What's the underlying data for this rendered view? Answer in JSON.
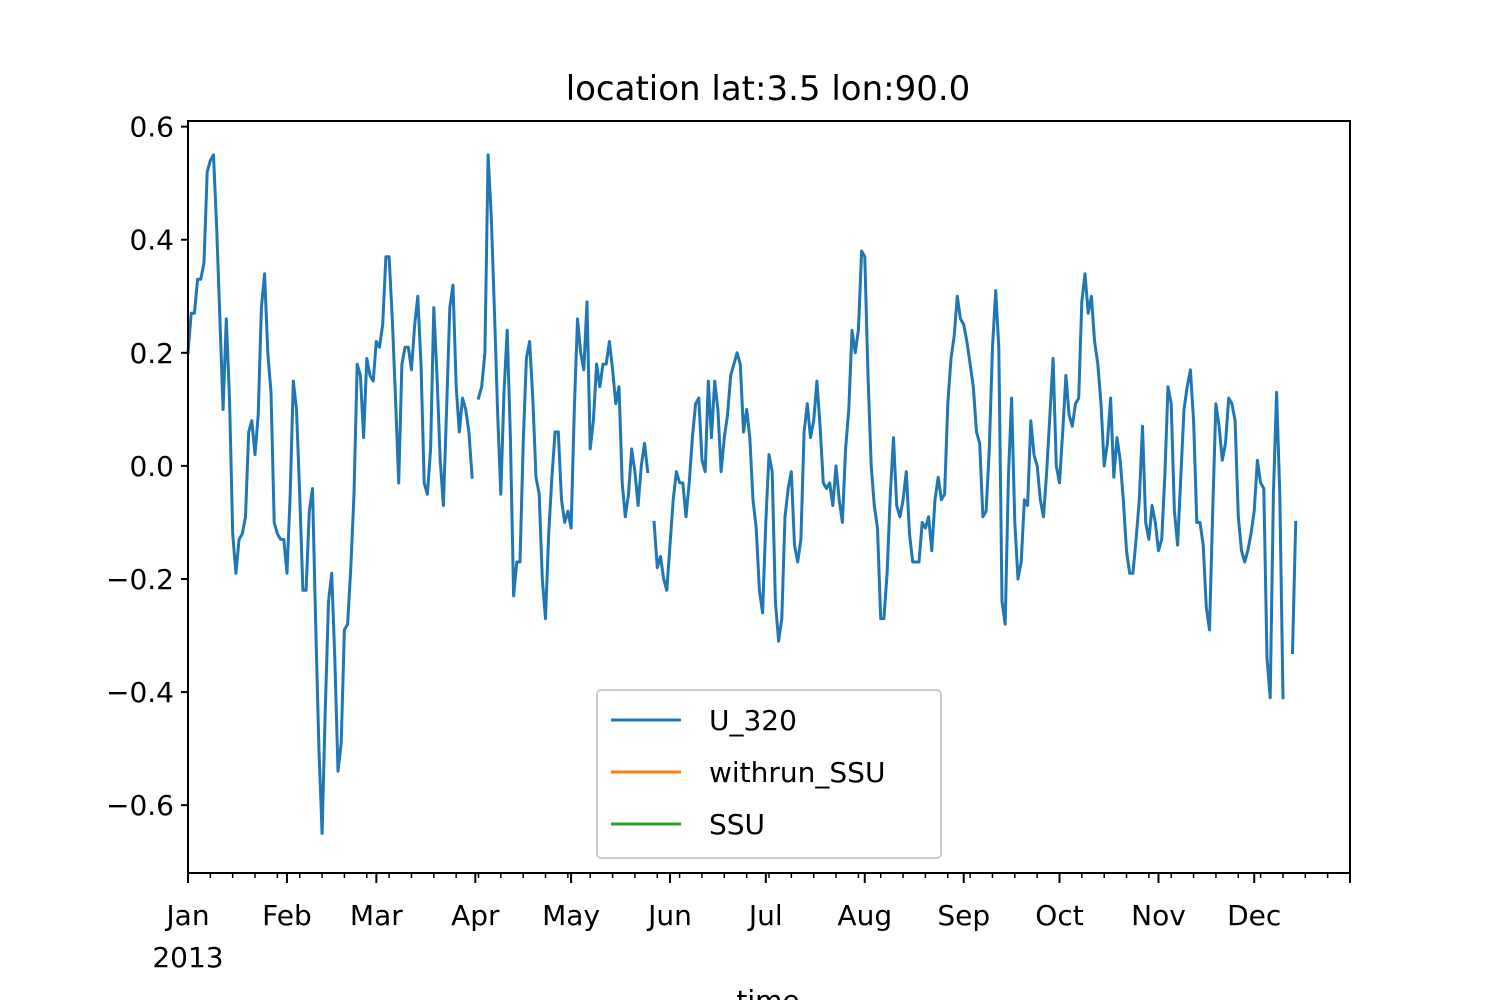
{
  "chart_data": {
    "type": "line",
    "title": "location lat:3.5 lon:90.0",
    "xlabel": "time",
    "ylabel": "",
    "x_start": "2013-01-01",
    "x_step": "1 day",
    "xlim": [
      "2013-01-01",
      "2013-12-31"
    ],
    "ylim": [
      -0.72,
      0.61
    ],
    "yticks": [
      0.6,
      0.4,
      0.2,
      0.0,
      -0.2,
      -0.4,
      -0.6
    ],
    "ytick_labels": [
      "0.6",
      "0.4",
      "0.2",
      "0.0",
      "−0.2",
      "−0.4",
      "−0.6"
    ],
    "month_ticks": [
      "2013-01-01",
      "2013-02-01",
      "2013-03-01",
      "2013-04-01",
      "2013-05-01",
      "2013-06-01",
      "2013-07-01",
      "2013-08-01",
      "2013-09-01",
      "2013-10-01",
      "2013-11-01",
      "2013-12-01"
    ],
    "month_labels": [
      "Jan",
      "Feb",
      "Mar",
      "Apr",
      "May",
      "Jun",
      "Jul",
      "Aug",
      "Sep",
      "Oct",
      "Nov",
      "Dec"
    ],
    "year_label": "2013",
    "grid": false,
    "legend_position": "lower center",
    "series": [
      {
        "name": "U_320",
        "color": "#1f77b4",
        "values": [
          0.2,
          0.27,
          0.27,
          0.33,
          0.33,
          0.36,
          0.52,
          0.54,
          0.55,
          0.42,
          0.26,
          0.1,
          0.26,
          0.12,
          -0.12,
          -0.19,
          -0.13,
          -0.12,
          -0.09,
          0.06,
          0.08,
          0.02,
          0.09,
          0.28,
          0.34,
          0.2,
          0.13,
          -0.1,
          -0.12,
          -0.13,
          -0.13,
          -0.19,
          -0.05,
          0.15,
          0.1,
          -0.05,
          -0.22,
          -0.22,
          -0.08,
          -0.04,
          -0.28,
          -0.5,
          -0.65,
          -0.43,
          -0.24,
          -0.19,
          -0.34,
          -0.54,
          -0.49,
          -0.29,
          -0.28,
          -0.18,
          -0.05,
          0.18,
          0.16,
          0.05,
          0.19,
          0.16,
          0.15,
          0.22,
          0.21,
          0.25,
          0.37,
          0.37,
          0.26,
          0.12,
          -0.03,
          0.18,
          0.21,
          0.21,
          0.17,
          0.25,
          0.3,
          0.18,
          -0.03,
          -0.05,
          0.03,
          0.28,
          0.16,
          0.01,
          -0.07,
          0.1,
          0.28,
          0.32,
          0.14,
          0.06,
          0.12,
          0.1,
          0.06,
          -0.02,
          null,
          0.12,
          0.14,
          0.2,
          0.55,
          0.44,
          0.27,
          0.09,
          -0.05,
          0.13,
          0.24,
          0.05,
          -0.23,
          -0.17,
          -0.17,
          0.04,
          0.19,
          0.22,
          0.12,
          -0.02,
          -0.05,
          -0.2,
          -0.27,
          -0.12,
          -0.02,
          0.06,
          0.06,
          -0.06,
          -0.1,
          -0.08,
          -0.11,
          0.1,
          0.26,
          0.2,
          0.17,
          0.29,
          0.03,
          0.08,
          0.18,
          0.14,
          0.18,
          0.18,
          0.22,
          0.17,
          0.11,
          0.14,
          -0.03,
          -0.09,
          -0.05,
          0.03,
          -0.01,
          -0.07,
          0.0,
          0.04,
          -0.01,
          null,
          -0.1,
          -0.18,
          -0.16,
          -0.2,
          -0.22,
          -0.14,
          -0.06,
          -0.01,
          -0.03,
          -0.03,
          -0.09,
          -0.03,
          0.05,
          0.11,
          0.12,
          0.01,
          -0.01,
          0.15,
          0.05,
          0.15,
          0.1,
          -0.01,
          0.05,
          0.09,
          0.16,
          0.18,
          0.2,
          0.18,
          0.06,
          0.1,
          0.05,
          -0.06,
          -0.11,
          -0.22,
          -0.26,
          -0.1,
          0.02,
          -0.01,
          -0.24,
          -0.31,
          -0.27,
          -0.09,
          -0.04,
          -0.01,
          -0.14,
          -0.17,
          -0.13,
          0.06,
          0.11,
          0.05,
          0.08,
          0.15,
          0.07,
          -0.03,
          -0.04,
          -0.03,
          -0.07,
          0.0,
          -0.06,
          -0.1,
          0.03,
          0.1,
          0.24,
          0.2,
          0.24,
          0.38,
          0.37,
          0.16,
          0.0,
          -0.07,
          -0.11,
          -0.27,
          -0.27,
          -0.19,
          -0.05,
          0.05,
          -0.07,
          -0.09,
          -0.06,
          -0.01,
          -0.12,
          -0.17,
          -0.17,
          -0.17,
          -0.1,
          -0.11,
          -0.09,
          -0.15,
          -0.06,
          -0.02,
          -0.06,
          -0.05,
          0.11,
          0.19,
          0.23,
          0.3,
          0.26,
          0.25,
          0.22,
          0.18,
          0.14,
          0.06,
          0.04,
          -0.09,
          -0.08,
          0.03,
          0.21,
          0.31,
          0.21,
          -0.24,
          -0.28,
          -0.02,
          0.12,
          -0.1,
          -0.2,
          -0.17,
          -0.06,
          -0.07,
          0.08,
          0.02,
          0.0,
          -0.06,
          -0.09,
          -0.01,
          0.09,
          0.19,
          0.0,
          -0.03,
          0.06,
          0.16,
          0.09,
          0.07,
          0.11,
          0.12,
          0.29,
          0.34,
          0.27,
          0.3,
          0.22,
          0.18,
          0.11,
          0.0,
          0.04,
          0.12,
          -0.02,
          0.05,
          0.01,
          -0.06,
          -0.15,
          -0.19,
          -0.19,
          -0.13,
          -0.06,
          0.07,
          -0.1,
          -0.13,
          -0.07,
          -0.1,
          -0.15,
          -0.13,
          -0.02,
          0.14,
          0.11,
          -0.08,
          -0.14,
          -0.02,
          0.1,
          0.14,
          0.17,
          0.08,
          -0.1,
          -0.1,
          -0.14,
          -0.25,
          -0.29,
          -0.08,
          0.11,
          0.07,
          0.01,
          0.04,
          0.12,
          0.11,
          0.08,
          -0.09,
          -0.15,
          -0.17,
          -0.15,
          -0.12,
          -0.08,
          0.01,
          -0.03,
          -0.04,
          -0.34,
          -0.41,
          -0.05,
          0.13,
          -0.05,
          -0.41,
          null,
          null,
          -0.33,
          -0.1
        ]
      },
      {
        "name": "withrun_SSU",
        "color": "#ff7f0e",
        "values": []
      },
      {
        "name": "SSU",
        "color": "#2ca02c",
        "values": []
      }
    ]
  }
}
